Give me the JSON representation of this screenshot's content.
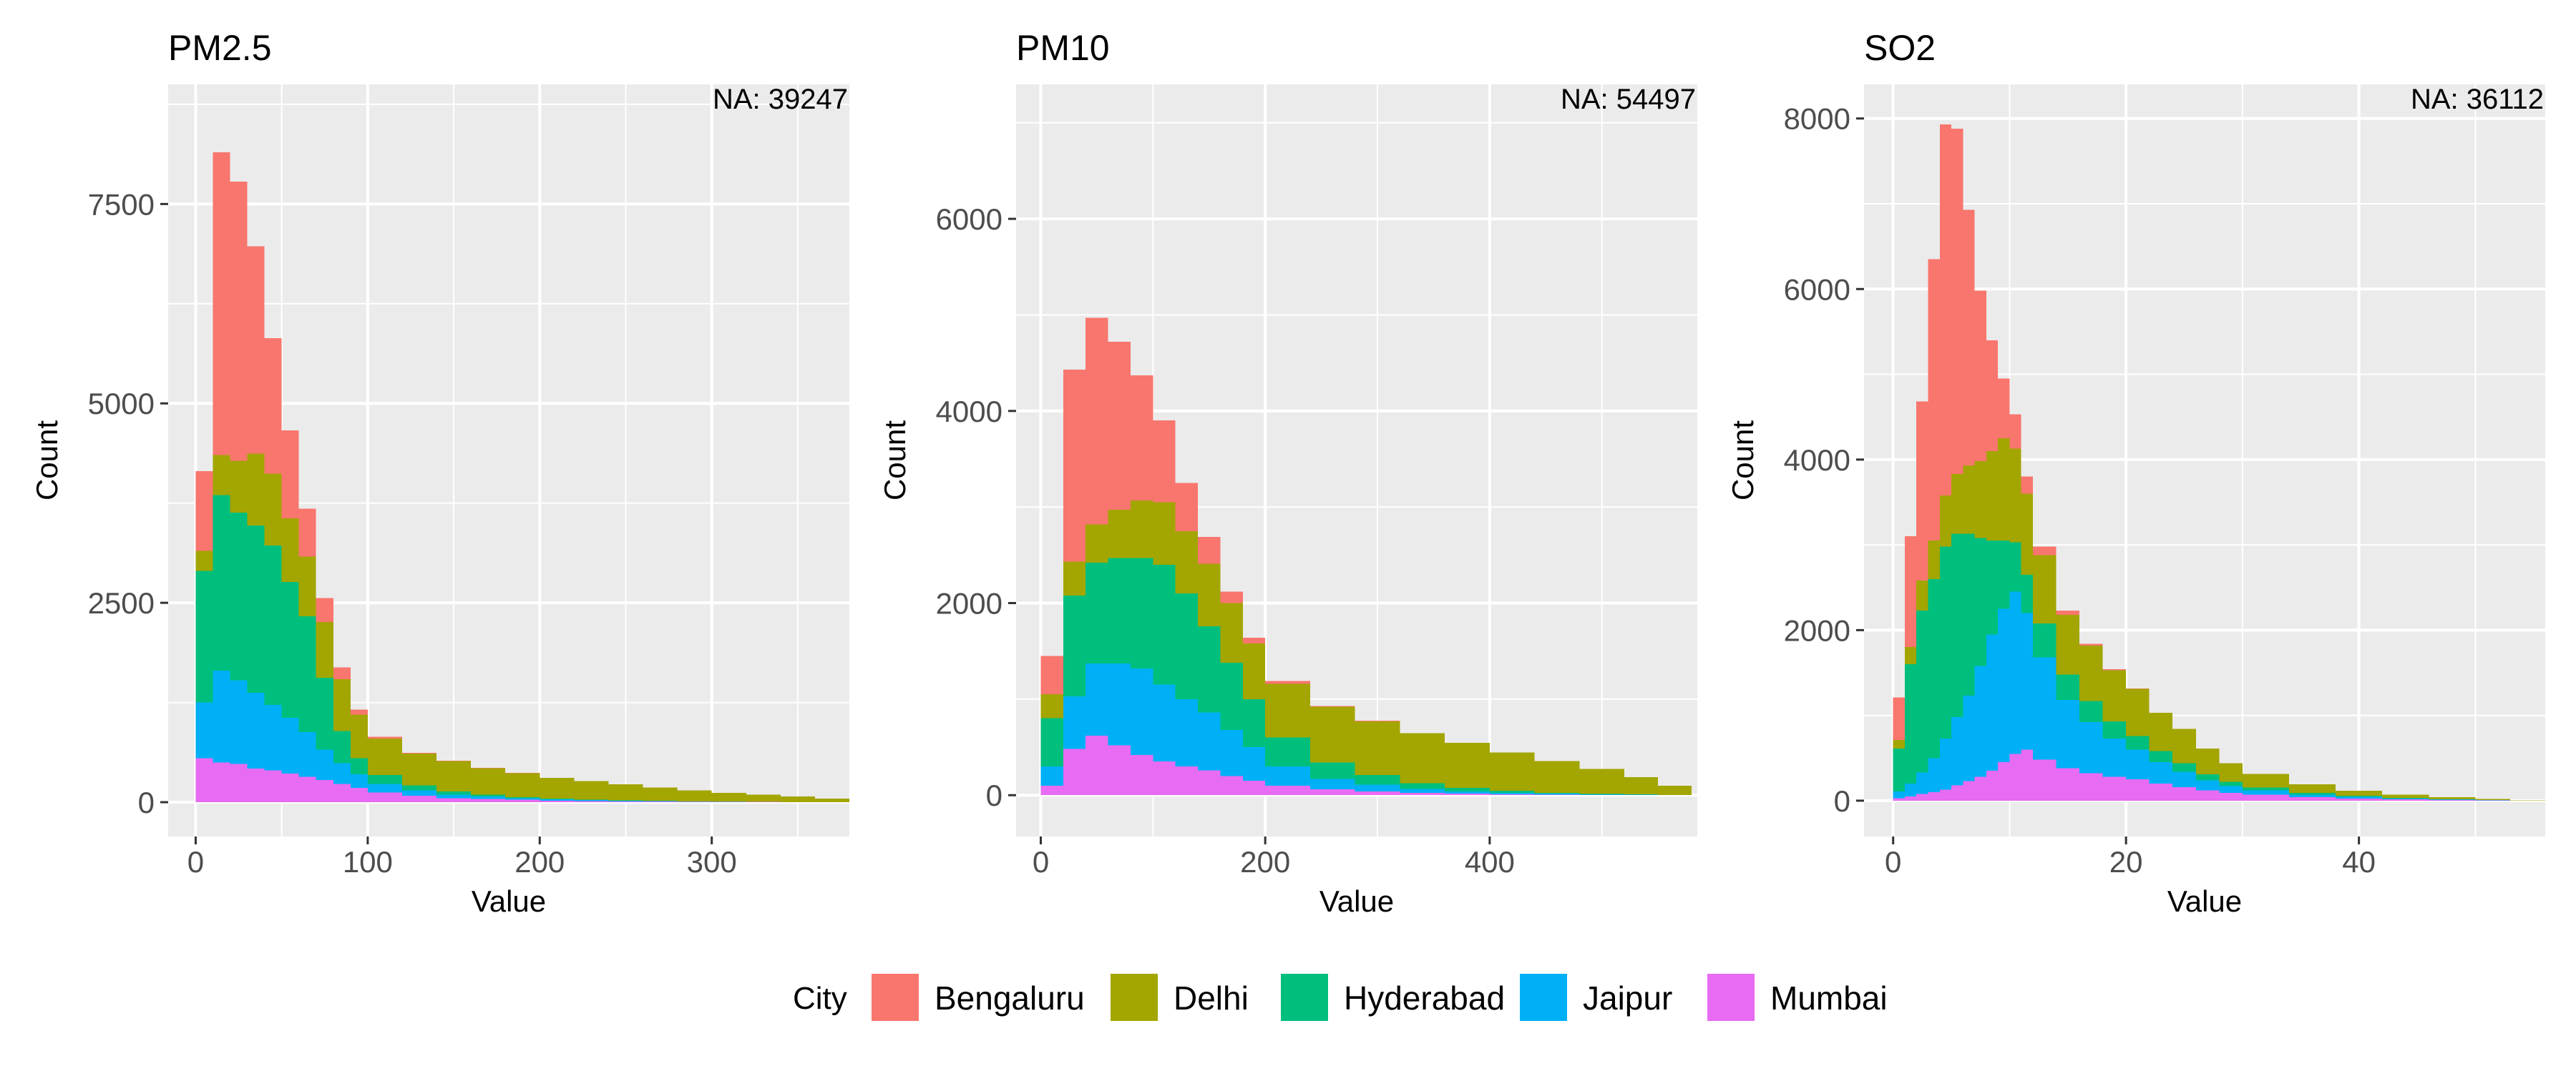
{
  "chart_data": [
    {
      "type": "bar",
      "title": "PM2.5",
      "annotation": "NA: 39247",
      "xlabel": "Value",
      "ylabel": "Count",
      "xlim": [
        -16,
        380
      ],
      "ylim": [
        -430,
        9000
      ],
      "xticks": [
        0,
        100,
        200,
        300
      ],
      "yticks": [
        0,
        2500,
        5000,
        7500
      ],
      "x": [
        0,
        10,
        20,
        30,
        40,
        50,
        60,
        70,
        80,
        90,
        100,
        120,
        140,
        160,
        180,
        200,
        220,
        240,
        260,
        280,
        300,
        320,
        340,
        360
      ],
      "series": [
        {
          "name": "Mumbai",
          "values": [
            550,
            500,
            480,
            420,
            400,
            360,
            320,
            280,
            230,
            180,
            120,
            80,
            50,
            40,
            30,
            20,
            15,
            10,
            8,
            5,
            4,
            3,
            2,
            0
          ]
        },
        {
          "name": "Jaipur",
          "values": [
            700,
            1150,
            1050,
            950,
            820,
            700,
            560,
            380,
            260,
            170,
            110,
            70,
            45,
            30,
            20,
            15,
            10,
            8,
            5,
            3,
            2,
            1,
            0,
            0
          ]
        },
        {
          "name": "Hyderabad",
          "values": [
            1650,
            2200,
            2100,
            2100,
            2000,
            1700,
            1450,
            900,
            400,
            200,
            110,
            60,
            40,
            25,
            15,
            10,
            8,
            5,
            3,
            2,
            1,
            0,
            0,
            0
          ]
        },
        {
          "name": "Delhi",
          "values": [
            250,
            500,
            650,
            900,
            900,
            800,
            750,
            700,
            650,
            550,
            460,
            400,
            380,
            330,
            300,
            260,
            230,
            200,
            170,
            140,
            110,
            90,
            70,
            45
          ]
        },
        {
          "name": "Bengaluru",
          "values": [
            1000,
            3800,
            3500,
            2600,
            1700,
            1100,
            600,
            300,
            150,
            60,
            20,
            10,
            7,
            5,
            2,
            0,
            0,
            0,
            0,
            0,
            0,
            0,
            0,
            0
          ]
        }
      ]
    },
    {
      "type": "bar",
      "title": "PM10",
      "annotation": "NA: 54497",
      "xlabel": "Value",
      "ylabel": "Count",
      "xlim": [
        -22,
        585
      ],
      "ylim": [
        -430,
        7400
      ],
      "xticks": [
        0,
        200,
        400
      ],
      "yticks": [
        0,
        2000,
        4000,
        6000
      ],
      "x": [
        0,
        20,
        40,
        60,
        80,
        100,
        120,
        140,
        160,
        180,
        200,
        240,
        280,
        320,
        360,
        400,
        440,
        480,
        520,
        550
      ],
      "series": [
        {
          "name": "Mumbai",
          "values": [
            100,
            480,
            620,
            520,
            420,
            350,
            300,
            260,
            200,
            150,
            100,
            60,
            40,
            25,
            15,
            10,
            5,
            3,
            2,
            0
          ]
        },
        {
          "name": "Jaipur",
          "values": [
            200,
            550,
            750,
            850,
            900,
            800,
            700,
            600,
            480,
            350,
            200,
            110,
            70,
            40,
            25,
            15,
            10,
            5,
            3,
            0
          ]
        },
        {
          "name": "Hyderabad",
          "values": [
            500,
            1050,
            1050,
            1100,
            1150,
            1250,
            1100,
            900,
            700,
            500,
            300,
            170,
            100,
            60,
            35,
            20,
            10,
            5,
            3,
            0
          ]
        },
        {
          "name": "Delhi",
          "values": [
            250,
            350,
            400,
            500,
            600,
            650,
            650,
            650,
            620,
            580,
            560,
            580,
            560,
            520,
            470,
            400,
            330,
            260,
            180,
            100
          ]
        },
        {
          "name": "Bengaluru",
          "values": [
            400,
            2000,
            2150,
            1750,
            1300,
            850,
            500,
            280,
            120,
            60,
            30,
            10,
            5,
            2,
            0,
            0,
            0,
            0,
            0,
            0
          ]
        }
      ]
    },
    {
      "type": "bar",
      "title": "SO2",
      "annotation": "NA: 36112",
      "xlabel": "Value",
      "ylabel": "Count",
      "xlim": [
        -2.5,
        56
      ],
      "ylim": [
        -420,
        8400
      ],
      "xticks": [
        0,
        20,
        40
      ],
      "yticks": [
        0,
        2000,
        4000,
        6000,
        8000
      ],
      "x": [
        0,
        1,
        2,
        3,
        4,
        5,
        6,
        7,
        8,
        9,
        10,
        11,
        12,
        14,
        16,
        18,
        20,
        22,
        24,
        26,
        28,
        30,
        34,
        38,
        42,
        46,
        50,
        53
      ],
      "series": [
        {
          "name": "Mumbai",
          "values": [
            30,
            50,
            80,
            100,
            130,
            180,
            230,
            280,
            350,
            450,
            550,
            600,
            480,
            380,
            320,
            280,
            250,
            200,
            160,
            120,
            90,
            70,
            40,
            25,
            15,
            8,
            4,
            0
          ]
        },
        {
          "name": "Jaipur",
          "values": [
            80,
            150,
            250,
            400,
            600,
            800,
            1000,
            1300,
            1600,
            1800,
            1900,
            1600,
            1200,
            800,
            600,
            450,
            350,
            250,
            180,
            120,
            80,
            50,
            30,
            20,
            10,
            6,
            3,
            0
          ]
        },
        {
          "name": "Hyderabad",
          "values": [
            500,
            1400,
            1900,
            2100,
            2250,
            2150,
            1900,
            1500,
            1100,
            800,
            580,
            450,
            400,
            300,
            250,
            200,
            160,
            130,
            100,
            70,
            50,
            35,
            20,
            12,
            7,
            4,
            2,
            0
          ]
        },
        {
          "name": "Delhi",
          "values": [
            100,
            200,
            350,
            450,
            600,
            700,
            800,
            900,
            1050,
            1200,
            1100,
            950,
            800,
            700,
            650,
            600,
            550,
            450,
            400,
            300,
            220,
            160,
            100,
            60,
            40,
            25,
            12,
            5
          ]
        },
        {
          "name": "Bengaluru",
          "values": [
            500,
            1300,
            2100,
            3300,
            4350,
            4050,
            3000,
            2000,
            1300,
            700,
            400,
            200,
            100,
            50,
            20,
            10,
            5,
            2,
            0,
            0,
            0,
            0,
            0,
            0,
            0,
            0,
            0,
            0
          ]
        }
      ]
    }
  ],
  "legend": {
    "title": "City",
    "entries": [
      {
        "label": "Bengaluru",
        "color": "#F8766D"
      },
      {
        "label": "Delhi",
        "color": "#A3A500"
      },
      {
        "label": "Hyderabad",
        "color": "#00BF7D"
      },
      {
        "label": "Jaipur",
        "color": "#00B0F6"
      },
      {
        "label": "Mumbai",
        "color": "#E76BF3"
      }
    ]
  },
  "colors": {
    "panel_background": "#EBEBEB",
    "grid": "#FFFFFF",
    "Bengaluru": "#F8766D",
    "Delhi": "#A3A500",
    "Hyderabad": "#00BF7D",
    "Jaipur": "#00B0F6",
    "Mumbai": "#E76BF3"
  }
}
